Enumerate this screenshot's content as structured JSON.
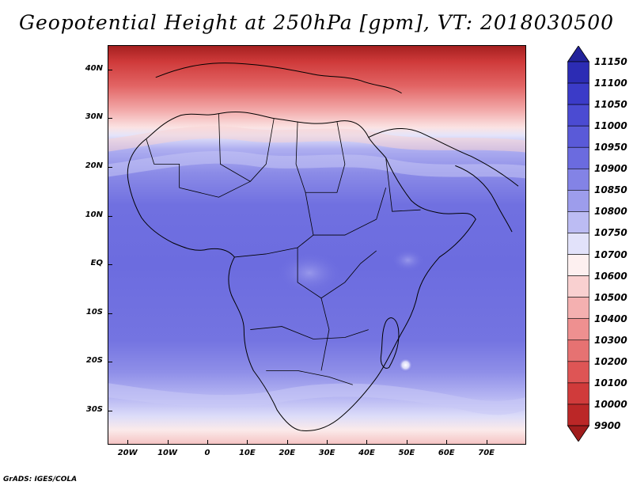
{
  "title": "Geopotential Height at 250hPa [gpm], VT: 2018030500",
  "footer": "GrADS: IGES/COLA",
  "map": {
    "variable": "Geopotential Height",
    "level": "250hPa",
    "units": "gpm",
    "valid_time": "2018030500",
    "lon_range": [
      -25,
      80
    ],
    "lat_range": [
      -37,
      45
    ],
    "lat_labels": [
      "40N",
      "30N",
      "20N",
      "10N",
      "EQ",
      "10S",
      "20S",
      "30S"
    ],
    "lat_values": [
      40,
      30,
      20,
      10,
      0,
      -10,
      -20,
      -30
    ],
    "lon_labels": [
      "20W",
      "10W",
      "0",
      "10E",
      "20E",
      "30E",
      "40E",
      "50E",
      "60E",
      "70E"
    ],
    "lon_values": [
      -20,
      -10,
      0,
      10,
      20,
      30,
      40,
      50,
      60,
      70
    ]
  },
  "colorbar": {
    "labels": [
      "11150",
      "11100",
      "11050",
      "11000",
      "10950",
      "10900",
      "10850",
      "10800",
      "10750",
      "10700",
      "10600",
      "10500",
      "10400",
      "10300",
      "10200",
      "10100",
      "10000",
      "9900"
    ],
    "colors": [
      "#23239b",
      "#2c2cb4",
      "#3b3bc8",
      "#4b4bd2",
      "#5a5ad8",
      "#6b6bdf",
      "#8383e6",
      "#9d9dec",
      "#bcbcf3",
      "#e2e2fa",
      "#fdf0f0",
      "#f9d0d0",
      "#f4b0b0",
      "#ee9090",
      "#e67272",
      "#de5555",
      "#d03b3b",
      "#bb2727",
      "#a01c1c"
    ]
  }
}
